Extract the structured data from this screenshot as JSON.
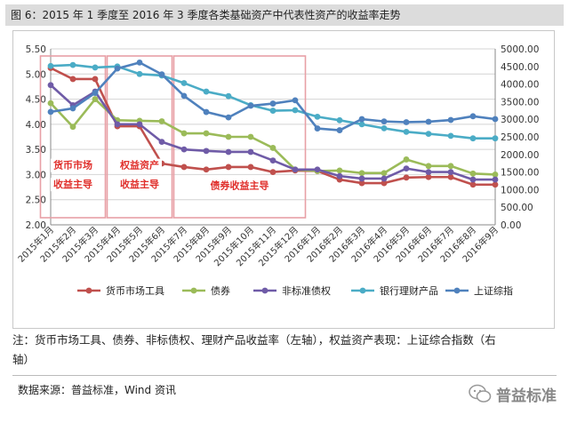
{
  "figure_title": "图 6：2015 年 1 季度至 2016 年 3 季度各类基础资产中代表性资产的收益率走势",
  "note_line1": "注：货币市场工具、债券、非标债权、理财产品收益率（左轴），权益资产表现：上证综合指数（右",
  "note_line2": "轴）",
  "source": "数据来源：普益标准，Wind 资讯",
  "watermark": {
    "text": "普益标准",
    "icon": "wechat-icon"
  },
  "chart_data": {
    "type": "line",
    "categories": [
      "2015年1月",
      "2015年2月",
      "2015年3月",
      "2015年4月",
      "2015年5月",
      "2015年6月",
      "2015年7月",
      "2015年8月",
      "2015年9月",
      "2015年10月",
      "2015年11月",
      "2015年12月",
      "2016年1月",
      "2016年2月",
      "2016年3月",
      "2016年4月",
      "2016年5月",
      "2016年6月",
      "2016年7月",
      "2016年8月",
      "2016年9月"
    ],
    "y_left": {
      "min": 2.0,
      "max": 5.5,
      "step": 0.5,
      "tick_labels": [
        "2.00",
        "2.50",
        "3.00",
        "3.50",
        "4.00",
        "4.50",
        "5.00",
        "5.50"
      ]
    },
    "y_right": {
      "min": 0,
      "max": 5000,
      "step": 500,
      "tick_labels": [
        "0.00",
        "500.00",
        "1000.00",
        "1500.00",
        "2000.00",
        "2500.00",
        "3000.00",
        "3500.00",
        "4000.00",
        "4500.00",
        "5000.00"
      ]
    },
    "series": [
      {
        "name": "货币市场工具",
        "axis": "left",
        "color": "#c0504d",
        "values": [
          5.12,
          4.9,
          4.9,
          3.96,
          3.96,
          3.22,
          3.15,
          3.1,
          3.15,
          3.15,
          3.05,
          3.08,
          3.07,
          2.9,
          2.83,
          2.83,
          2.94,
          2.95,
          2.95,
          2.8,
          2.8
        ]
      },
      {
        "name": "债券",
        "axis": "left",
        "color": "#9bbb59",
        "values": [
          4.42,
          3.95,
          4.5,
          4.08,
          4.07,
          4.06,
          3.82,
          3.82,
          3.75,
          3.75,
          3.53,
          3.1,
          3.07,
          3.08,
          3.03,
          3.03,
          3.3,
          3.17,
          3.17,
          3.02,
          3.0
        ]
      },
      {
        "name": "非标准债权",
        "axis": "left",
        "color": "#6f5ba7",
        "values": [
          4.78,
          4.38,
          4.65,
          4.0,
          4.0,
          3.65,
          3.5,
          3.47,
          3.45,
          3.45,
          3.28,
          3.1,
          3.1,
          2.97,
          2.92,
          2.92,
          3.12,
          3.05,
          3.05,
          2.9,
          2.9
        ]
      },
      {
        "name": "银行理财产品",
        "axis": "left",
        "color": "#4bacc6",
        "values": [
          5.16,
          5.18,
          5.13,
          5.15,
          5.0,
          4.97,
          4.82,
          4.65,
          4.56,
          4.38,
          4.27,
          4.28,
          4.15,
          4.08,
          4.0,
          3.92,
          3.85,
          3.81,
          3.77,
          3.72,
          3.72
        ]
      },
      {
        "name": "上证综指",
        "axis": "right",
        "color": "#4f81bd",
        "values": [
          3210,
          3310,
          3748,
          4441,
          4612,
          4277,
          3664,
          3206,
          3053,
          3383,
          3446,
          3539,
          2738,
          2688,
          3004,
          2939,
          2917,
          2930,
          2979,
          3085,
          3005
        ]
      }
    ],
    "annotations": [
      {
        "lines": [
          "货币市场",
          "收益主导"
        ],
        "color": "#e0302c"
      },
      {
        "lines": [
          "权益资产",
          "收益主导"
        ],
        "color": "#e0302c"
      },
      {
        "lines": [
          "债券收益主导"
        ],
        "color": "#e0302c"
      }
    ],
    "phase_boxes": [
      {
        "from": 0,
        "to": 2
      },
      {
        "from": 3,
        "to": 5
      },
      {
        "from": 6,
        "to": 11
      }
    ],
    "legend_position": "bottom",
    "grid": true
  }
}
